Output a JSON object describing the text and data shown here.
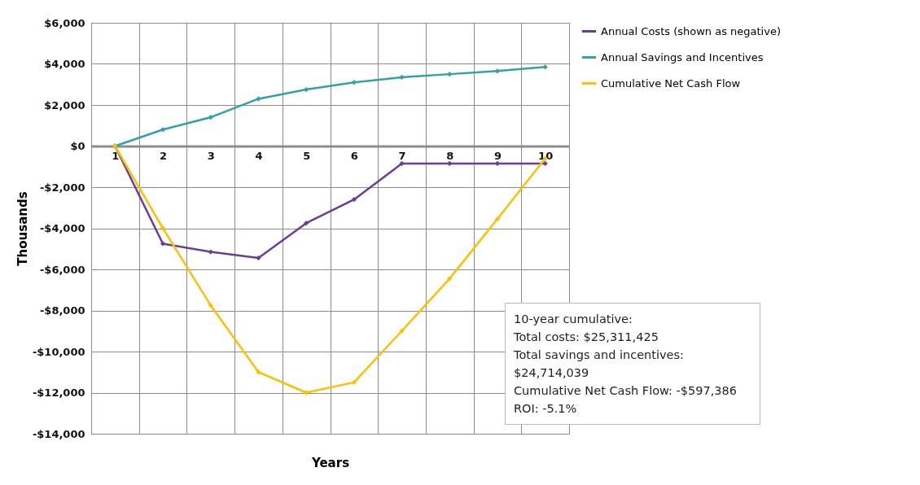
{
  "chart_data": {
    "type": "line",
    "xlabel": "Years",
    "ylabel": "Thousands",
    "categories": [
      "1",
      "2",
      "3",
      "4",
      "5",
      "6",
      "7",
      "8",
      "9",
      "10"
    ],
    "series": [
      {
        "name": "Annual Costs (shown as negative)",
        "color": "#6a3d9a",
        "values": [
          0,
          -4750,
          -5150,
          -5450,
          -3750,
          -2600,
          -850,
          -850,
          -850,
          -850
        ]
      },
      {
        "name": "Annual Savings and Incentives",
        "color": "#33a0aa",
        "values": [
          0,
          800,
          1400,
          2300,
          2750,
          3100,
          3350,
          3500,
          3650,
          3850
        ]
      },
      {
        "name": "Cumulative Net Cash Flow",
        "color": "#ffc000",
        "values": [
          0,
          -4000,
          -7750,
          -11000,
          -12000,
          -11500,
          -9000,
          -6450,
          -3550,
          -600
        ]
      }
    ],
    "ylim": [
      -14000,
      6000
    ],
    "yticks": [
      {
        "value": -14000,
        "label": "-$14,000"
      },
      {
        "value": -12000,
        "label": "-$12,000"
      },
      {
        "value": -10000,
        "label": "-$10,000"
      },
      {
        "value": -8000,
        "label": "-$8,000"
      },
      {
        "value": -6000,
        "label": "-$6,000"
      },
      {
        "value": -4000,
        "label": "-$4,000"
      },
      {
        "value": -2000,
        "label": "-$2,000"
      },
      {
        "value": 0,
        "label": "$0"
      },
      {
        "value": 2000,
        "label": "$2,000"
      },
      {
        "value": 4000,
        "label": "$4,000"
      },
      {
        "value": 6000,
        "label": "$6,000"
      }
    ],
    "grid": true,
    "legend": "right",
    "marker": "diamond",
    "line_style": "solid",
    "annotations": [
      "10-year cumulative:",
      "Total costs: $25,311,425",
      "Total savings and incentives: $24,714,039",
      "Cumulative Net Cash Flow: -$597,386",
      "ROI: -5.1%"
    ]
  }
}
